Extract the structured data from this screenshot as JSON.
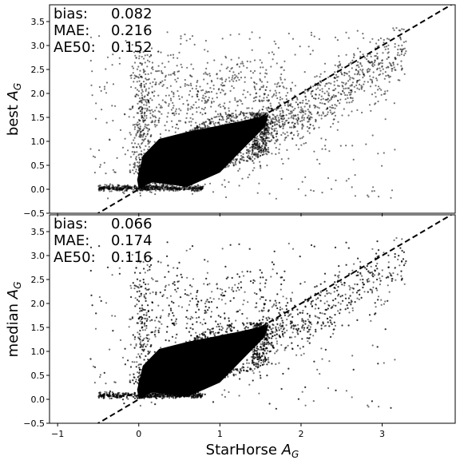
{
  "chart_data": [
    {
      "type": "scatter",
      "title": "",
      "xlabel": "",
      "ylabel": "best",
      "ylabel_sub": "G",
      "xlim": [
        -1.1,
        3.9
      ],
      "ylim": [
        -0.5,
        3.85
      ],
      "yticks": [
        "−0.5",
        "0.0",
        "0.5",
        "1.0",
        "1.5",
        "2.0",
        "2.5",
        "3.0",
        "3.5"
      ],
      "ytick_values": [
        -0.5,
        0.0,
        0.5,
        1.0,
        1.5,
        2.0,
        2.5,
        3.0,
        3.5
      ],
      "reference_line": {
        "slope": 1,
        "intercept": 0,
        "style": "dashed",
        "color": "#000000"
      },
      "stats": [
        {
          "label": "bias:",
          "value": "0.082"
        },
        {
          "label": "MAE:",
          "value": "0.216"
        },
        {
          "label": "AE50:",
          "value": "0.152"
        }
      ],
      "density_model": "dense cloud along y≈x with flattening near y≈0 for x<0.5 and spread above line for x in 0..1.6"
    },
    {
      "type": "scatter",
      "title": "",
      "xlabel": "StarHorse",
      "xlabel_sub": "G",
      "ylabel": "median",
      "ylabel_sub": "G",
      "xlim": [
        -1.1,
        3.9
      ],
      "ylim": [
        -0.5,
        3.85
      ],
      "xticks": [
        "−1",
        "0",
        "1",
        "2",
        "3"
      ],
      "xtick_values": [
        -1,
        0,
        1,
        2,
        3
      ],
      "yticks": [
        "−0.5",
        "0.0",
        "0.5",
        "1.0",
        "1.5",
        "2.0",
        "2.5",
        "3.0",
        "3.5"
      ],
      "ytick_values": [
        -0.5,
        0.0,
        0.5,
        1.0,
        1.5,
        2.0,
        2.5,
        3.0,
        3.5
      ],
      "reference_line": {
        "slope": 1,
        "intercept": 0,
        "style": "dashed",
        "color": "#000000"
      },
      "stats": [
        {
          "label": "bias:",
          "value": "0.066"
        },
        {
          "label": "MAE:",
          "value": "0.174"
        },
        {
          "label": "AE50:",
          "value": "0.116"
        }
      ]
    }
  ],
  "colors": {
    "points": "#000000",
    "background": "#ffffff"
  }
}
